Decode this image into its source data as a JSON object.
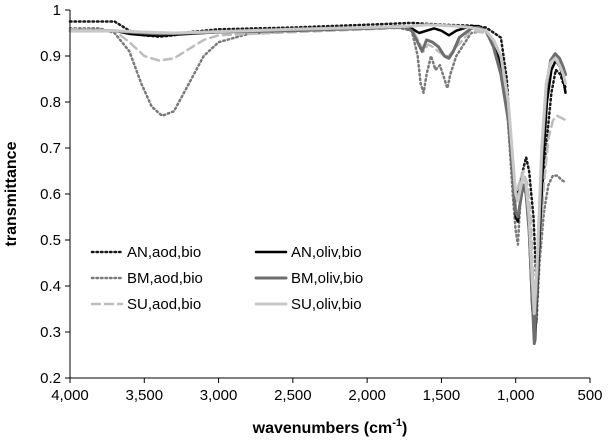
{
  "chart_data": {
    "type": "line",
    "xlabel": "wavenumbers",
    "xlabel_unit": "(cm",
    "xlabel_sup": "-1",
    "xlabel_close": ")",
    "ylabel": "transmittance",
    "xlim": [
      4000,
      500
    ],
    "ylim": [
      0.2,
      1.0
    ],
    "x_ticks": [
      {
        "value": 4000,
        "label": "4,000"
      },
      {
        "value": 3500,
        "label": "3,500"
      },
      {
        "value": 3000,
        "label": "3,000"
      },
      {
        "value": 2500,
        "label": "2,500"
      },
      {
        "value": 2000,
        "label": "2,000"
      },
      {
        "value": 1500,
        "label": "1,500"
      },
      {
        "value": 1000,
        "label": "1,000"
      },
      {
        "value": 500,
        "label": "500"
      }
    ],
    "y_ticks": [
      {
        "value": 0.2,
        "label": "0.2"
      },
      {
        "value": 0.3,
        "label": "0.3"
      },
      {
        "value": 0.4,
        "label": "0.4"
      },
      {
        "value": 0.5,
        "label": "0.5"
      },
      {
        "value": 0.6,
        "label": "0.6"
      },
      {
        "value": 0.7,
        "label": "0.7"
      },
      {
        "value": 0.8,
        "label": "0.8"
      },
      {
        "value": 0.9,
        "label": "0.9"
      },
      {
        "value": 1.0,
        "label": "1"
      }
    ],
    "grid": false,
    "legend_position": "lower-left",
    "series": [
      {
        "name": "AN,aod,bio",
        "color": "#1a1a1a",
        "dash": "dotted",
        "width": 2.5,
        "points": [
          [
            4000,
            0.975
          ],
          [
            3700,
            0.975
          ],
          [
            3600,
            0.955
          ],
          [
            3500,
            0.945
          ],
          [
            3400,
            0.942
          ],
          [
            3300,
            0.945
          ],
          [
            3200,
            0.952
          ],
          [
            3000,
            0.958
          ],
          [
            2500,
            0.962
          ],
          [
            2000,
            0.968
          ],
          [
            1700,
            0.972
          ],
          [
            1500,
            0.968
          ],
          [
            1300,
            0.966
          ],
          [
            1200,
            0.962
          ],
          [
            1100,
            0.94
          ],
          [
            1060,
            0.85
          ],
          [
            1030,
            0.7
          ],
          [
            1010,
            0.58
          ],
          [
            990,
            0.6
          ],
          [
            960,
            0.64
          ],
          [
            930,
            0.68
          ],
          [
            910,
            0.65
          ],
          [
            880,
            0.55
          ],
          [
            860,
            0.4
          ],
          [
            840,
            0.52
          ],
          [
            820,
            0.62
          ],
          [
            790,
            0.72
          ],
          [
            760,
            0.82
          ],
          [
            730,
            0.87
          ],
          [
            700,
            0.86
          ],
          [
            680,
            0.84
          ],
          [
            660,
            0.83
          ]
        ]
      },
      {
        "name": "BM,aod,bio",
        "color": "#7a7a7a",
        "dash": "dotted",
        "width": 2.5,
        "points": [
          [
            4000,
            0.96
          ],
          [
            3800,
            0.96
          ],
          [
            3700,
            0.95
          ],
          [
            3600,
            0.91
          ],
          [
            3520,
            0.84
          ],
          [
            3450,
            0.79
          ],
          [
            3380,
            0.77
          ],
          [
            3300,
            0.78
          ],
          [
            3200,
            0.84
          ],
          [
            3100,
            0.9
          ],
          [
            3000,
            0.93
          ],
          [
            2800,
            0.948
          ],
          [
            2500,
            0.955
          ],
          [
            2000,
            0.96
          ],
          [
            1800,
            0.962
          ],
          [
            1700,
            0.955
          ],
          [
            1660,
            0.9
          ],
          [
            1640,
            0.84
          ],
          [
            1620,
            0.82
          ],
          [
            1600,
            0.86
          ],
          [
            1570,
            0.9
          ],
          [
            1540,
            0.87
          ],
          [
            1510,
            0.88
          ],
          [
            1480,
            0.85
          ],
          [
            1460,
            0.83
          ],
          [
            1440,
            0.86
          ],
          [
            1400,
            0.9
          ],
          [
            1300,
            0.95
          ],
          [
            1200,
            0.955
          ],
          [
            1100,
            0.9
          ],
          [
            1050,
            0.75
          ],
          [
            1020,
            0.6
          ],
          [
            1000,
            0.52
          ],
          [
            985,
            0.49
          ],
          [
            970,
            0.58
          ],
          [
            950,
            0.62
          ],
          [
            930,
            0.6
          ],
          [
            900,
            0.5
          ],
          [
            880,
            0.38
          ],
          [
            860,
            0.32
          ],
          [
            840,
            0.45
          ],
          [
            810,
            0.56
          ],
          [
            780,
            0.62
          ],
          [
            750,
            0.64
          ],
          [
            720,
            0.64
          ],
          [
            690,
            0.63
          ],
          [
            660,
            0.625
          ]
        ]
      },
      {
        "name": "SU,aod,bio",
        "color": "#bdbdbd",
        "dash": "dashed",
        "width": 2.5,
        "points": [
          [
            4000,
            0.958
          ],
          [
            3700,
            0.955
          ],
          [
            3600,
            0.93
          ],
          [
            3500,
            0.9
          ],
          [
            3400,
            0.89
          ],
          [
            3300,
            0.895
          ],
          [
            3200,
            0.915
          ],
          [
            3100,
            0.935
          ],
          [
            3000,
            0.945
          ],
          [
            2500,
            0.952
          ],
          [
            2000,
            0.958
          ],
          [
            1700,
            0.962
          ],
          [
            1650,
            0.93
          ],
          [
            1620,
            0.91
          ],
          [
            1590,
            0.925
          ],
          [
            1560,
            0.92
          ],
          [
            1520,
            0.91
          ],
          [
            1480,
            0.9
          ],
          [
            1450,
            0.9
          ],
          [
            1400,
            0.92
          ],
          [
            1300,
            0.955
          ],
          [
            1200,
            0.95
          ],
          [
            1100,
            0.9
          ],
          [
            1050,
            0.8
          ],
          [
            1020,
            0.66
          ],
          [
            1000,
            0.6
          ],
          [
            980,
            0.62
          ],
          [
            950,
            0.65
          ],
          [
            920,
            0.62
          ],
          [
            900,
            0.55
          ],
          [
            880,
            0.4
          ],
          [
            860,
            0.34
          ],
          [
            840,
            0.48
          ],
          [
            810,
            0.62
          ],
          [
            780,
            0.72
          ],
          [
            750,
            0.76
          ],
          [
            720,
            0.77
          ],
          [
            690,
            0.765
          ],
          [
            660,
            0.76
          ]
        ]
      },
      {
        "name": "AN,oliv,bio",
        "color": "#000000",
        "dash": "solid",
        "width": 2.5,
        "points": [
          [
            4000,
            0.955
          ],
          [
            3700,
            0.955
          ],
          [
            3600,
            0.948
          ],
          [
            3500,
            0.945
          ],
          [
            3400,
            0.944
          ],
          [
            3300,
            0.946
          ],
          [
            3000,
            0.952
          ],
          [
            2500,
            0.958
          ],
          [
            2000,
            0.962
          ],
          [
            1750,
            0.965
          ],
          [
            1700,
            0.96
          ],
          [
            1650,
            0.95
          ],
          [
            1600,
            0.955
          ],
          [
            1550,
            0.96
          ],
          [
            1500,
            0.955
          ],
          [
            1450,
            0.945
          ],
          [
            1400,
            0.955
          ],
          [
            1300,
            0.965
          ],
          [
            1250,
            0.965
          ],
          [
            1200,
            0.955
          ],
          [
            1150,
            0.93
          ],
          [
            1100,
            0.88
          ],
          [
            1050,
            0.78
          ],
          [
            1020,
            0.65
          ],
          [
            1000,
            0.55
          ],
          [
            985,
            0.54
          ],
          [
            970,
            0.58
          ],
          [
            950,
            0.62
          ],
          [
            930,
            0.6
          ],
          [
            910,
            0.52
          ],
          [
            890,
            0.36
          ],
          [
            870,
            0.28
          ],
          [
            850,
            0.42
          ],
          [
            820,
            0.65
          ],
          [
            790,
            0.8
          ],
          [
            760,
            0.87
          ],
          [
            730,
            0.89
          ],
          [
            700,
            0.875
          ],
          [
            680,
            0.85
          ],
          [
            665,
            0.82
          ]
        ]
      },
      {
        "name": "BM,oliv,bio",
        "color": "#6e6e6e",
        "dash": "solid",
        "width": 3,
        "points": [
          [
            4000,
            0.955
          ],
          [
            3700,
            0.955
          ],
          [
            3600,
            0.952
          ],
          [
            3400,
            0.948
          ],
          [
            3000,
            0.952
          ],
          [
            2500,
            0.955
          ],
          [
            2000,
            0.96
          ],
          [
            1750,
            0.963
          ],
          [
            1700,
            0.955
          ],
          [
            1660,
            0.93
          ],
          [
            1630,
            0.91
          ],
          [
            1600,
            0.935
          ],
          [
            1560,
            0.93
          ],
          [
            1520,
            0.92
          ],
          [
            1480,
            0.9
          ],
          [
            1450,
            0.895
          ],
          [
            1420,
            0.91
          ],
          [
            1380,
            0.94
          ],
          [
            1300,
            0.96
          ],
          [
            1250,
            0.962
          ],
          [
            1200,
            0.955
          ],
          [
            1150,
            0.92
          ],
          [
            1100,
            0.86
          ],
          [
            1050,
            0.76
          ],
          [
            1020,
            0.64
          ],
          [
            1000,
            0.56
          ],
          [
            985,
            0.55
          ],
          [
            970,
            0.58
          ],
          [
            950,
            0.62
          ],
          [
            930,
            0.6
          ],
          [
            910,
            0.52
          ],
          [
            890,
            0.38
          ],
          [
            875,
            0.275
          ],
          [
            855,
            0.42
          ],
          [
            825,
            0.68
          ],
          [
            795,
            0.83
          ],
          [
            765,
            0.89
          ],
          [
            735,
            0.905
          ],
          [
            705,
            0.895
          ],
          [
            680,
            0.875
          ],
          [
            665,
            0.86
          ]
        ]
      },
      {
        "name": "SU,oliv,bio",
        "color": "#c8c8c8",
        "dash": "solid",
        "width": 3,
        "points": [
          [
            4000,
            0.955
          ],
          [
            3700,
            0.955
          ],
          [
            3500,
            0.952
          ],
          [
            3300,
            0.95
          ],
          [
            3000,
            0.953
          ],
          [
            2500,
            0.958
          ],
          [
            2000,
            0.962
          ],
          [
            1700,
            0.965
          ],
          [
            1600,
            0.968
          ],
          [
            1400,
            0.965
          ],
          [
            1300,
            0.962
          ],
          [
            1200,
            0.955
          ],
          [
            1150,
            0.935
          ],
          [
            1100,
            0.9
          ],
          [
            1050,
            0.8
          ],
          [
            1020,
            0.68
          ],
          [
            1000,
            0.6
          ],
          [
            985,
            0.585
          ],
          [
            970,
            0.61
          ],
          [
            950,
            0.64
          ],
          [
            930,
            0.62
          ],
          [
            910,
            0.55
          ],
          [
            890,
            0.42
          ],
          [
            875,
            0.34
          ],
          [
            855,
            0.46
          ],
          [
            825,
            0.7
          ],
          [
            795,
            0.84
          ],
          [
            765,
            0.885
          ],
          [
            735,
            0.895
          ],
          [
            705,
            0.88
          ],
          [
            680,
            0.86
          ],
          [
            665,
            0.84
          ]
        ]
      }
    ]
  }
}
